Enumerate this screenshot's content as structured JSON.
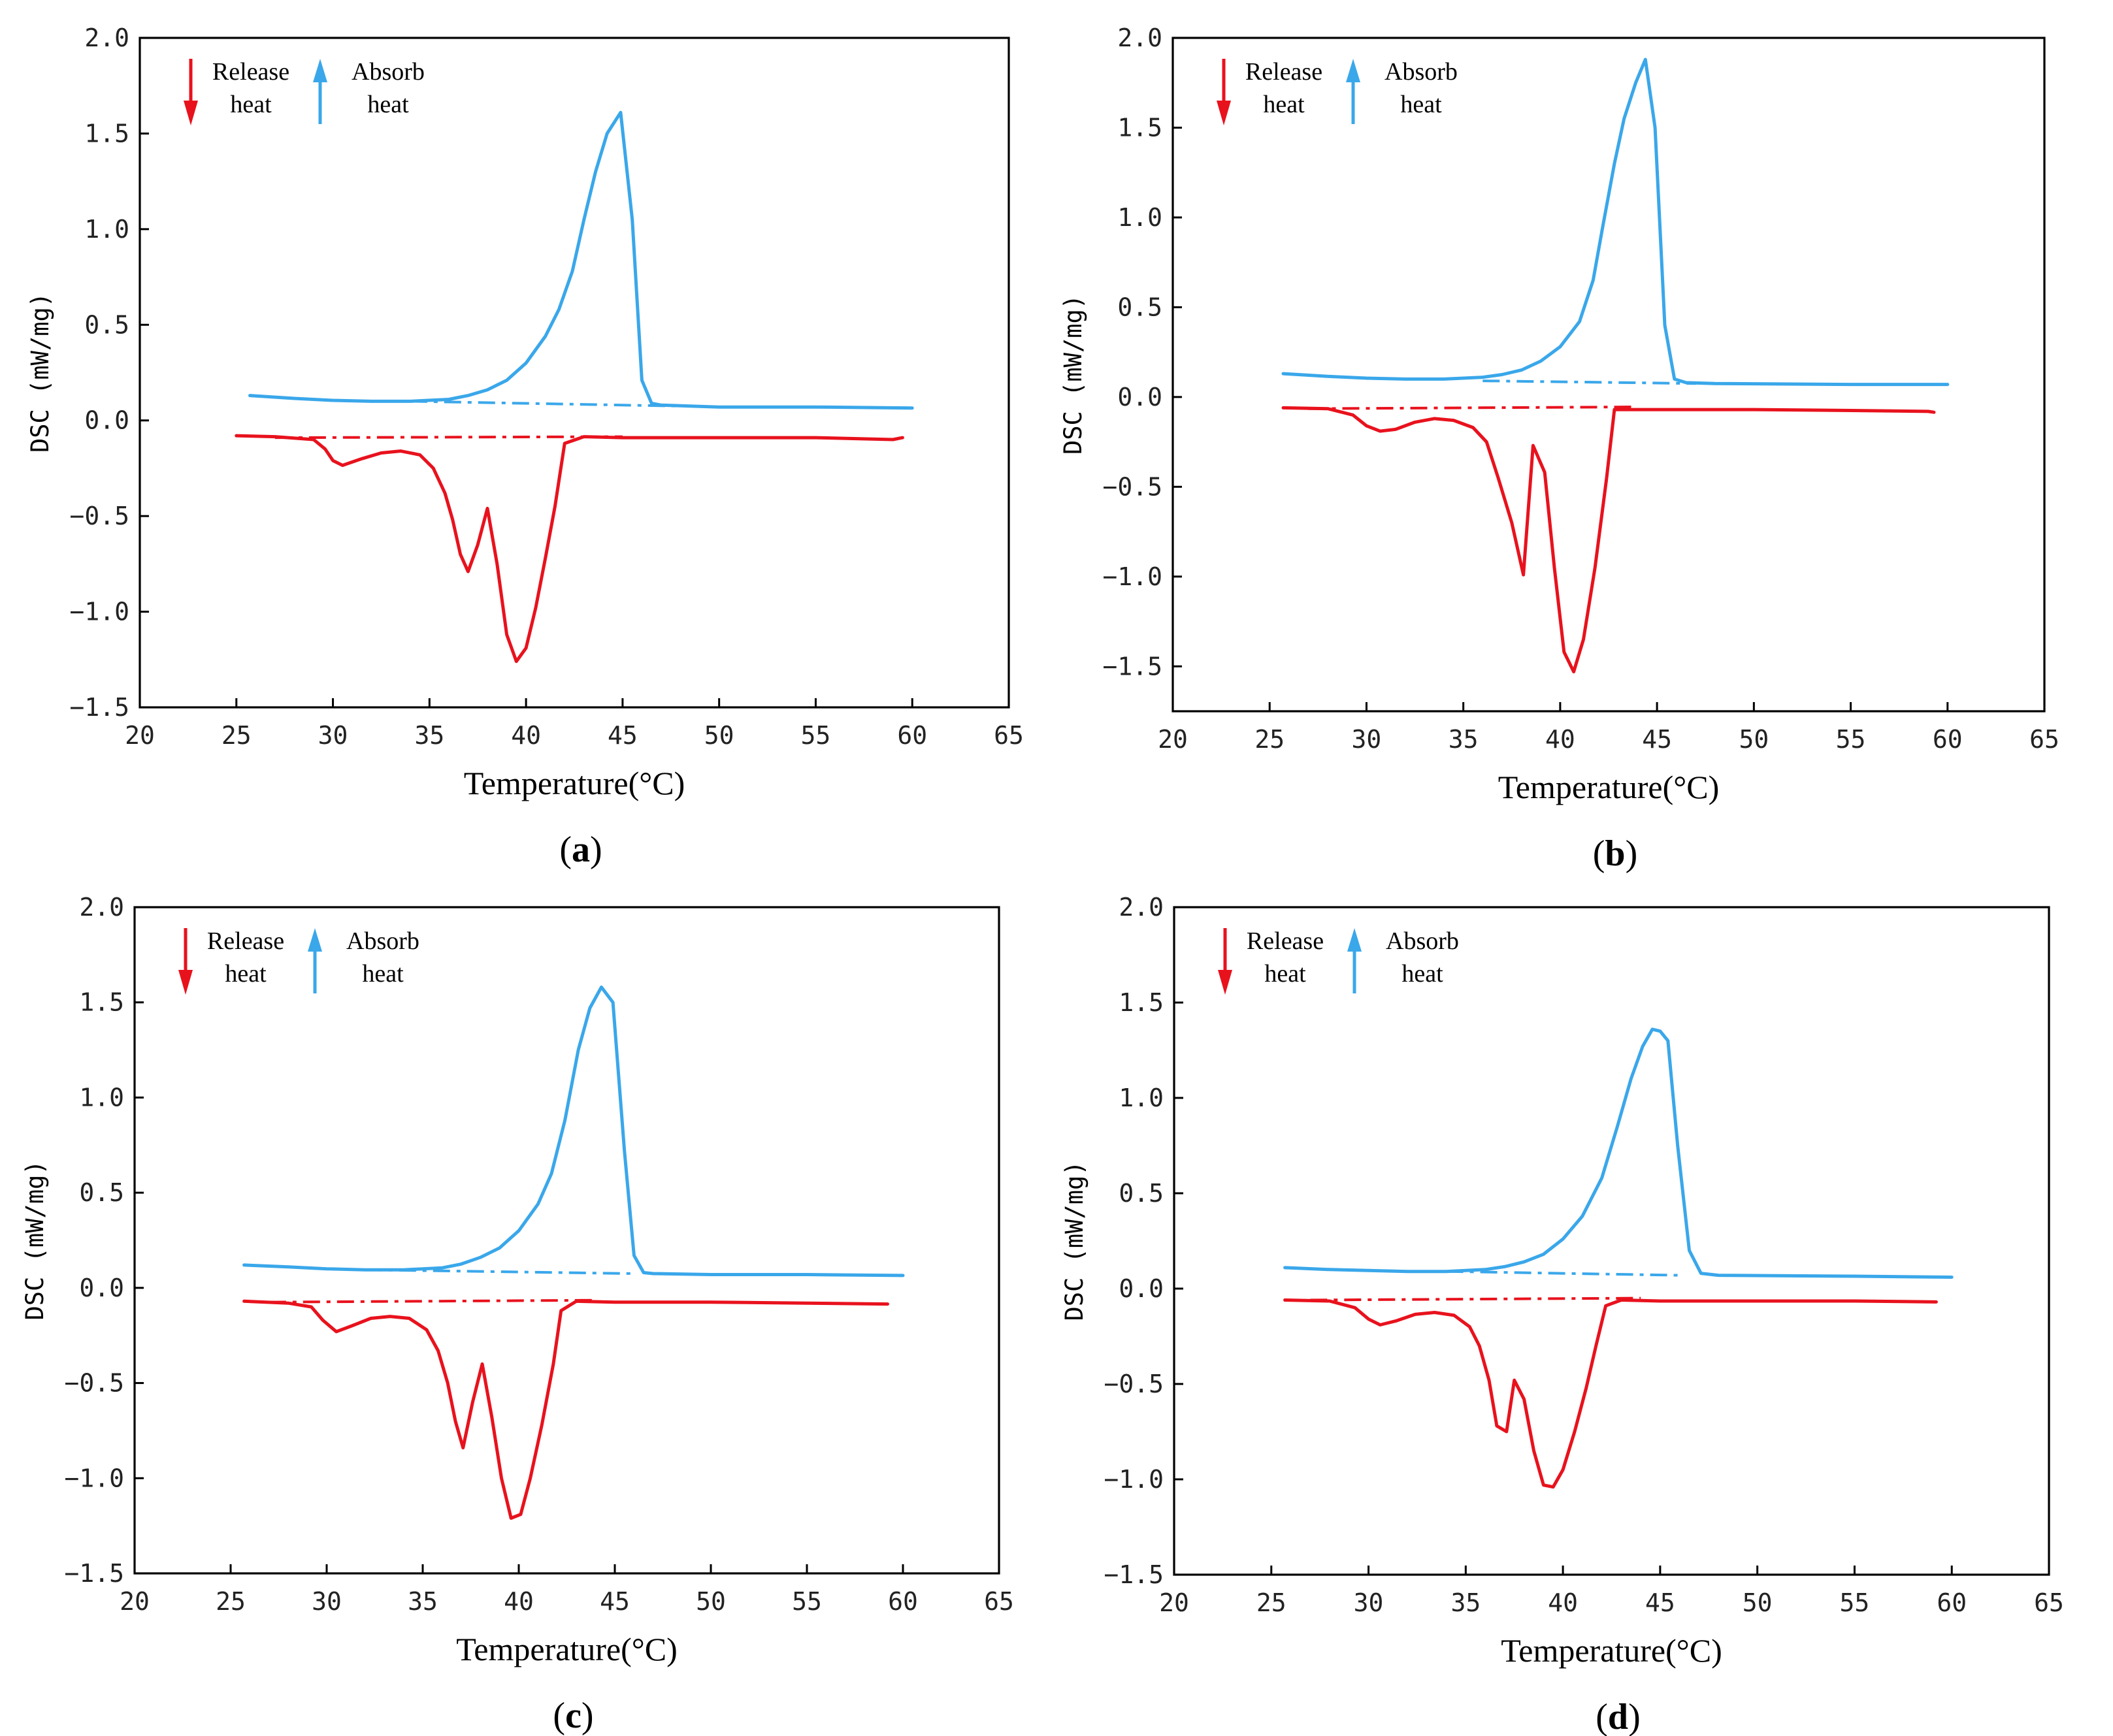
{
  "figure": {
    "legend": {
      "release_label_1": "Release",
      "release_label_2": "heat",
      "absorb_label_1": "Absorb",
      "absorb_label_2": "heat"
    },
    "xlabel": "Temperature(°C)",
    "ylabel": "DSC (mW/mg)",
    "colors": {
      "release": "#e8121d",
      "absorb": "#3aa7ea"
    }
  },
  "chart_data": [
    {
      "id": "a",
      "panel_label": "a",
      "type": "line",
      "xlabel": "Temperature(°C)",
      "ylabel": "DSC (mW/mg)",
      "xlim": [
        20,
        65
      ],
      "ylim": [
        -1.5,
        2.0
      ],
      "xticks": [
        20,
        25,
        30,
        35,
        40,
        45,
        50,
        55,
        60,
        65
      ],
      "yticks": [
        -1.5,
        -1.0,
        -0.5,
        0.0,
        0.5,
        1.0,
        1.5,
        2.0
      ],
      "ytick_labels": [
        "−1.5",
        "−1.0",
        "−0.5",
        "0.0",
        "0.5",
        "1.0",
        "1.5",
        "2.0"
      ],
      "series": [
        {
          "name": "Absorb heat",
          "color": "#3aa7ea",
          "style": "solid",
          "x": [
            25.7,
            28,
            30,
            32,
            34,
            36,
            37,
            38,
            39,
            40,
            41,
            41.7,
            42.4,
            43,
            43.6,
            44.2,
            44.9,
            45.5,
            46.0,
            46.5,
            47,
            50,
            55,
            60
          ],
          "y": [
            0.13,
            0.115,
            0.105,
            0.1,
            0.1,
            0.11,
            0.13,
            0.16,
            0.21,
            0.3,
            0.44,
            0.58,
            0.78,
            1.05,
            1.3,
            1.5,
            1.61,
            1.05,
            0.21,
            0.09,
            0.08,
            0.07,
            0.07,
            0.065
          ]
        },
        {
          "name": "Release heat",
          "color": "#e8121d",
          "style": "solid",
          "x": [
            25,
            27,
            29,
            29.6,
            30,
            30.5,
            31.5,
            32.5,
            33.5,
            34.5,
            35.2,
            35.8,
            36.2,
            36.6,
            37,
            37.5,
            38,
            38.5,
            39,
            39.5,
            40,
            40.5,
            41,
            41.5,
            42,
            43,
            45,
            50,
            55,
            59,
            59.5
          ],
          "y": [
            -0.08,
            -0.085,
            -0.1,
            -0.15,
            -0.21,
            -0.235,
            -0.2,
            -0.17,
            -0.16,
            -0.18,
            -0.25,
            -0.38,
            -0.52,
            -0.7,
            -0.79,
            -0.65,
            -0.46,
            -0.75,
            -1.12,
            -1.26,
            -1.19,
            -0.98,
            -0.72,
            -0.45,
            -0.12,
            -0.085,
            -0.09,
            -0.09,
            -0.09,
            -0.1,
            -0.09
          ]
        },
        {
          "name": "Absorb baseline",
          "color": "#3aa7ea",
          "style": "dashdot",
          "x": [
            34,
            48
          ],
          "y": [
            0.1,
            0.075
          ]
        },
        {
          "name": "Release baseline",
          "color": "#e8121d",
          "style": "dashdot",
          "x": [
            27,
            45
          ],
          "y": [
            -0.09,
            -0.085
          ]
        }
      ]
    },
    {
      "id": "b",
      "panel_label": "b",
      "type": "line",
      "xlabel": "Temperature(°C)",
      "ylabel": "DSC (mW/mg)",
      "xlim": [
        20,
        65
      ],
      "ylim": [
        -1.75,
        2.0
      ],
      "xticks": [
        20,
        25,
        30,
        35,
        40,
        45,
        50,
        55,
        60,
        65
      ],
      "yticks": [
        -1.5,
        -1.0,
        -0.5,
        0.0,
        0.5,
        1.0,
        1.5,
        2.0
      ],
      "ytick_labels": [
        "−1.5",
        "−1.0",
        "−0.5",
        "0.0",
        "0.5",
        "1.0",
        "1.5",
        "2.0"
      ],
      "series": [
        {
          "name": "Absorb heat",
          "color": "#3aa7ea",
          "style": "solid",
          "x": [
            25.7,
            28,
            30,
            32,
            34,
            36,
            37,
            38,
            39,
            40,
            41,
            41.7,
            42.2,
            42.8,
            43.3,
            43.9,
            44.4,
            44.9,
            45.4,
            45.9,
            46.5,
            48,
            55,
            60
          ],
          "y": [
            0.13,
            0.115,
            0.105,
            0.1,
            0.1,
            0.11,
            0.125,
            0.15,
            0.2,
            0.28,
            0.42,
            0.65,
            0.95,
            1.3,
            1.55,
            1.75,
            1.88,
            1.5,
            0.4,
            0.1,
            0.08,
            0.075,
            0.07,
            0.07
          ],
          "note": "peak ~1.88"
        },
        {
          "name": "Release heat",
          "color": "#e8121d",
          "style": "solid",
          "x": [
            25.7,
            28,
            29.3,
            30,
            30.7,
            31.5,
            32.5,
            33.5,
            34.5,
            35.5,
            36.2,
            36.8,
            37.5,
            38.1,
            38.6,
            39.2,
            39.7,
            40.2,
            40.7,
            41.2,
            41.8,
            42.4,
            42.8,
            45,
            50,
            55,
            59,
            59.3
          ],
          "y": [
            -0.06,
            -0.065,
            -0.1,
            -0.16,
            -0.19,
            -0.18,
            -0.14,
            -0.12,
            -0.13,
            -0.17,
            -0.25,
            -0.45,
            -0.7,
            -0.99,
            -0.27,
            -0.42,
            -0.95,
            -1.42,
            -1.53,
            -1.35,
            -0.95,
            -0.45,
            -0.07,
            -0.07,
            -0.07,
            -0.075,
            -0.08,
            -0.085
          ]
        },
        {
          "name": "Absorb baseline",
          "color": "#3aa7ea",
          "style": "dashdot",
          "x": [
            36,
            47
          ],
          "y": [
            0.09,
            0.075
          ]
        },
        {
          "name": "Release baseline",
          "color": "#e8121d",
          "style": "dashdot",
          "x": [
            27,
            44
          ],
          "y": [
            -0.065,
            -0.055
          ]
        }
      ]
    },
    {
      "id": "c",
      "panel_label": "c",
      "type": "line",
      "xlabel": "Temperature(°C)",
      "ylabel": "DSC (mW/mg)",
      "xlim": [
        20,
        65
      ],
      "ylim": [
        -1.5,
        2.0
      ],
      "xticks": [
        20,
        25,
        30,
        35,
        40,
        45,
        50,
        55,
        60,
        65
      ],
      "yticks": [
        -1.5,
        -1.0,
        -0.5,
        0.0,
        0.5,
        1.0,
        1.5,
        2.0
      ],
      "ytick_labels": [
        "−1.5",
        "−1.0",
        "−0.5",
        "0.0",
        "0.5",
        "1.0",
        "1.5",
        "2.0"
      ],
      "series": [
        {
          "name": "Absorb heat",
          "color": "#3aa7ea",
          "style": "solid",
          "x": [
            25.7,
            28,
            30,
            32,
            34,
            36,
            37,
            38,
            39,
            40,
            41,
            41.7,
            42.4,
            43.1,
            43.7,
            44.3,
            44.9,
            45.5,
            46.0,
            46.5,
            47,
            50,
            55,
            60
          ],
          "y": [
            0.12,
            0.11,
            0.1,
            0.095,
            0.095,
            0.105,
            0.125,
            0.16,
            0.21,
            0.3,
            0.44,
            0.6,
            0.88,
            1.25,
            1.47,
            1.58,
            1.5,
            0.72,
            0.17,
            0.08,
            0.075,
            0.07,
            0.07,
            0.065
          ]
        },
        {
          "name": "Release heat",
          "color": "#e8121d",
          "style": "solid",
          "x": [
            25.7,
            28,
            29.2,
            29.8,
            30.5,
            31.3,
            32.3,
            33.3,
            34.3,
            35.2,
            35.8,
            36.3,
            36.7,
            37.1,
            37.6,
            38.1,
            38.6,
            39.1,
            39.6,
            40.1,
            40.6,
            41.2,
            41.8,
            42.2,
            43,
            45,
            50,
            55,
            59.2
          ],
          "y": [
            -0.07,
            -0.08,
            -0.1,
            -0.17,
            -0.23,
            -0.2,
            -0.16,
            -0.15,
            -0.16,
            -0.22,
            -0.33,
            -0.5,
            -0.7,
            -0.84,
            -0.6,
            -0.4,
            -0.68,
            -1.0,
            -1.21,
            -1.19,
            -1.0,
            -0.72,
            -0.4,
            -0.12,
            -0.07,
            -0.075,
            -0.075,
            -0.08,
            -0.085
          ]
        },
        {
          "name": "Absorb baseline",
          "color": "#3aa7ea",
          "style": "dashdot",
          "x": [
            32,
            46
          ],
          "y": [
            0.095,
            0.075
          ]
        },
        {
          "name": "Release baseline",
          "color": "#e8121d",
          "style": "dashdot",
          "x": [
            27,
            44
          ],
          "y": [
            -0.075,
            -0.065
          ]
        }
      ]
    },
    {
      "id": "d",
      "panel_label": "d",
      "type": "line",
      "xlabel": "Temperature(°C)",
      "ylabel": "DSC (mW/mg)",
      "xlim": [
        20,
        65
      ],
      "ylim": [
        -1.5,
        2.0
      ],
      "xticks": [
        20,
        25,
        30,
        35,
        40,
        45,
        50,
        55,
        60,
        65
      ],
      "yticks": [
        -1.5,
        -1.0,
        -0.5,
        0.0,
        0.5,
        1.0,
        1.5,
        2.0
      ],
      "ytick_labels": [
        "−1.5",
        "−1.0",
        "−0.5",
        "0.0",
        "0.5",
        "1.0",
        "1.5",
        "2.0"
      ],
      "series": [
        {
          "name": "Absorb heat",
          "color": "#3aa7ea",
          "style": "solid",
          "x": [
            25.7,
            28,
            30,
            32,
            34,
            36,
            37,
            38,
            39,
            40,
            41,
            42,
            42.8,
            43.5,
            44.1,
            44.6,
            45.0,
            45.4,
            45.9,
            46.5,
            47.1,
            48,
            55,
            60
          ],
          "y": [
            0.11,
            0.1,
            0.095,
            0.09,
            0.09,
            0.1,
            0.115,
            0.14,
            0.18,
            0.26,
            0.38,
            0.58,
            0.85,
            1.1,
            1.27,
            1.36,
            1.35,
            1.3,
            0.75,
            0.2,
            0.08,
            0.07,
            0.065,
            0.06
          ]
        },
        {
          "name": "Release heat",
          "color": "#e8121d",
          "style": "solid",
          "x": [
            25.7,
            28,
            29.3,
            30,
            30.6,
            31.4,
            32.4,
            33.4,
            34.4,
            35.2,
            35.7,
            36.2,
            36.6,
            37.1,
            37.5,
            38.0,
            38.5,
            39.0,
            39.5,
            40.0,
            40.6,
            41.2,
            41.7,
            42.2,
            43,
            45,
            50,
            55,
            59.2
          ],
          "y": [
            -0.06,
            -0.065,
            -0.1,
            -0.16,
            -0.19,
            -0.17,
            -0.135,
            -0.125,
            -0.14,
            -0.2,
            -0.3,
            -0.48,
            -0.72,
            -0.75,
            -0.48,
            -0.58,
            -0.85,
            -1.03,
            -1.04,
            -0.95,
            -0.75,
            -0.52,
            -0.3,
            -0.09,
            -0.06,
            -0.065,
            -0.065,
            -0.065,
            -0.07
          ]
        },
        {
          "name": "Absorb baseline",
          "color": "#3aa7ea",
          "style": "dashdot",
          "x": [
            34,
            46
          ],
          "y": [
            0.09,
            0.07
          ]
        },
        {
          "name": "Release baseline",
          "color": "#e8121d",
          "style": "dashdot",
          "x": [
            27,
            44
          ],
          "y": [
            -0.06,
            -0.05
          ]
        }
      ]
    }
  ]
}
